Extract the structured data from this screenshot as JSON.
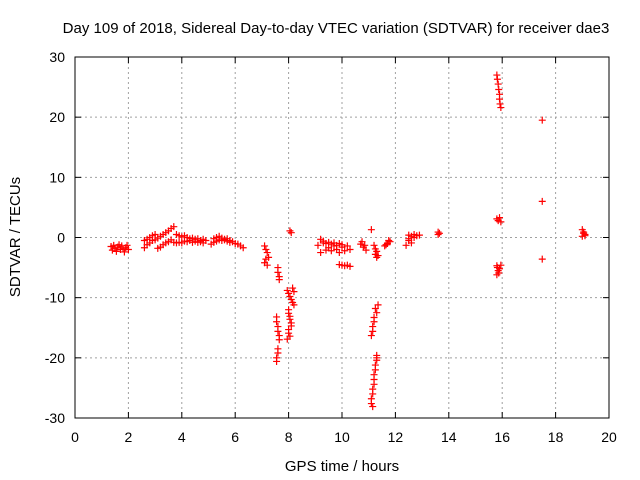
{
  "chart_data": {
    "type": "scatter",
    "title": "Day 109 of 2018, Sidereal Day-to-day VTEC variation (SDTVAR) for receiver dae3",
    "xlabel": "GPS time / hours",
    "ylabel": "SDTVAR / TECUs",
    "xlim": [
      0,
      20
    ],
    "ylim": [
      -30,
      30
    ],
    "xticks": [
      0,
      2,
      4,
      6,
      8,
      10,
      12,
      14,
      16,
      18,
      20
    ],
    "yticks": [
      -30,
      -20,
      -10,
      0,
      10,
      20,
      30
    ],
    "xtick_labels": [
      "0",
      "2",
      "4",
      "6",
      "8",
      "10",
      "12",
      "14",
      "16",
      "18",
      "20"
    ],
    "ytick_labels": [
      "-30",
      "-20",
      "-10",
      "0",
      "10",
      "20",
      "30"
    ],
    "grid": true,
    "marker": "+",
    "color": "#ff0000",
    "series": [
      {
        "name": "SDTVAR",
        "points": [
          [
            1.35,
            -1.5
          ],
          [
            1.4,
            -2.1
          ],
          [
            1.45,
            -1.3
          ],
          [
            1.5,
            -1.8
          ],
          [
            1.55,
            -2.3
          ],
          [
            1.6,
            -1.6
          ],
          [
            1.65,
            -1.2
          ],
          [
            1.7,
            -2.0
          ],
          [
            1.75,
            -1.4
          ],
          [
            1.8,
            -1.9
          ],
          [
            1.85,
            -2.4
          ],
          [
            1.9,
            -1.7
          ],
          [
            1.95,
            -1.3
          ],
          [
            2.0,
            -2.0
          ],
          [
            2.6,
            -1.7
          ],
          [
            2.7,
            -1.2
          ],
          [
            2.8,
            -0.9
          ],
          [
            2.9,
            -0.5
          ],
          [
            3.0,
            -0.4
          ],
          [
            3.1,
            -0.1
          ],
          [
            3.2,
            0.2
          ],
          [
            3.3,
            0.5
          ],
          [
            3.4,
            0.8
          ],
          [
            3.5,
            1.1
          ],
          [
            3.6,
            1.5
          ],
          [
            3.7,
            1.8
          ],
          [
            2.6,
            -0.5
          ],
          [
            2.7,
            -0.3
          ],
          [
            2.8,
            0.0
          ],
          [
            2.9,
            0.3
          ],
          [
            3.0,
            0.5
          ],
          [
            3.1,
            -1.8
          ],
          [
            3.2,
            -1.6
          ],
          [
            3.3,
            -1.2
          ],
          [
            3.4,
            -0.9
          ],
          [
            3.5,
            -0.7
          ],
          [
            3.6,
            -0.4
          ],
          [
            3.7,
            -0.8
          ],
          [
            3.8,
            -0.9
          ],
          [
            3.9,
            -0.8
          ],
          [
            4.0,
            -0.9
          ],
          [
            4.1,
            -0.6
          ],
          [
            4.2,
            -0.7
          ],
          [
            4.3,
            -0.5
          ],
          [
            4.4,
            -0.8
          ],
          [
            4.5,
            -0.6
          ],
          [
            4.6,
            -0.8
          ],
          [
            4.7,
            -0.7
          ],
          [
            4.8,
            -0.9
          ],
          [
            3.8,
            0.5
          ],
          [
            3.9,
            0.3
          ],
          [
            4.0,
            0.1
          ],
          [
            4.1,
            0.3
          ],
          [
            4.2,
            0.0
          ],
          [
            4.3,
            -0.2
          ],
          [
            4.4,
            -0.1
          ],
          [
            4.5,
            -0.3
          ],
          [
            4.6,
            -0.2
          ],
          [
            4.7,
            -0.5
          ],
          [
            4.8,
            -0.3
          ],
          [
            4.9,
            -0.5
          ],
          [
            5.1,
            -1.1
          ],
          [
            5.2,
            -0.8
          ],
          [
            5.3,
            -0.6
          ],
          [
            5.4,
            -0.4
          ],
          [
            5.5,
            -0.5
          ],
          [
            5.6,
            -0.3
          ],
          [
            5.7,
            -0.6
          ],
          [
            5.8,
            -0.8
          ],
          [
            5.9,
            -0.7
          ],
          [
            6.0,
            -1.0
          ],
          [
            6.1,
            -1.1
          ],
          [
            6.2,
            -1.4
          ],
          [
            6.3,
            -1.7
          ],
          [
            5.2,
            -0.2
          ],
          [
            5.3,
            0.0
          ],
          [
            5.4,
            0.2
          ],
          [
            5.5,
            -0.1
          ],
          [
            5.6,
            -0.4
          ],
          [
            5.7,
            -0.2
          ],
          [
            5.8,
            -0.5
          ],
          [
            7.1,
            -1.4
          ],
          [
            7.15,
            -2.0
          ],
          [
            7.2,
            -2.5
          ],
          [
            7.1,
            -4.2
          ],
          [
            7.15,
            -3.6
          ],
          [
            7.2,
            -4.6
          ],
          [
            7.25,
            -3.3
          ],
          [
            7.6,
            -5.0
          ],
          [
            7.6,
            -5.8
          ],
          [
            7.65,
            -6.5
          ],
          [
            7.65,
            -7.0
          ],
          [
            7.55,
            -13.2
          ],
          [
            7.55,
            -14.0
          ],
          [
            7.6,
            -14.8
          ],
          [
            7.6,
            -15.6
          ],
          [
            7.65,
            -16.3
          ],
          [
            7.65,
            -17.0
          ],
          [
            7.6,
            -18.5
          ],
          [
            7.6,
            -19.2
          ],
          [
            7.55,
            -20.0
          ],
          [
            7.55,
            -20.6
          ],
          [
            7.95,
            -8.8
          ],
          [
            8.0,
            -9.3
          ],
          [
            8.05,
            -9.8
          ],
          [
            8.1,
            -10.3
          ],
          [
            8.15,
            -10.8
          ],
          [
            8.2,
            -11.2
          ],
          [
            8.0,
            -12.0
          ],
          [
            8.0,
            -12.6
          ],
          [
            8.05,
            -13.1
          ],
          [
            8.05,
            -13.6
          ],
          [
            8.1,
            -14.2
          ],
          [
            8.1,
            -14.7
          ],
          [
            8.0,
            -15.3
          ],
          [
            8.0,
            -15.9
          ],
          [
            8.05,
            -16.4
          ],
          [
            7.95,
            -16.9
          ],
          [
            8.15,
            -8.4
          ],
          [
            8.2,
            -9.0
          ],
          [
            8.05,
            1.1
          ],
          [
            8.1,
            0.8
          ],
          [
            9.1,
            -1.3
          ],
          [
            9.2,
            -2.5
          ],
          [
            9.3,
            -0.9
          ],
          [
            9.4,
            -2.1
          ],
          [
            9.5,
            -1.7
          ],
          [
            9.6,
            -2.2
          ],
          [
            9.7,
            -1.4
          ],
          [
            9.8,
            -2.0
          ],
          [
            9.9,
            -2.5
          ],
          [
            10.0,
            -1.6
          ],
          [
            10.1,
            -2.2
          ],
          [
            10.2,
            -1.4
          ],
          [
            10.3,
            -2.0
          ],
          [
            9.2,
            -0.3
          ],
          [
            9.3,
            -0.6
          ],
          [
            9.4,
            -1.0
          ],
          [
            9.5,
            -0.8
          ],
          [
            9.6,
            -1.1
          ],
          [
            9.7,
            -0.9
          ],
          [
            9.8,
            -1.3
          ],
          [
            9.9,
            -1.0
          ],
          [
            10.0,
            -1.2
          ],
          [
            9.9,
            -4.5
          ],
          [
            10.0,
            -4.6
          ],
          [
            10.1,
            -4.7
          ],
          [
            10.2,
            -4.6
          ],
          [
            10.3,
            -4.8
          ],
          [
            10.7,
            -1.1
          ],
          [
            10.8,
            -1.6
          ],
          [
            10.9,
            -2.1
          ],
          [
            10.75,
            -0.7
          ],
          [
            10.85,
            -1.3
          ],
          [
            11.2,
            -1.3
          ],
          [
            11.25,
            -1.9
          ],
          [
            11.3,
            -2.3
          ],
          [
            11.25,
            -2.8
          ],
          [
            11.3,
            -3.3
          ],
          [
            11.35,
            -3.0
          ],
          [
            11.1,
            1.3
          ],
          [
            11.25,
            -11.8
          ],
          [
            11.3,
            -12.5
          ],
          [
            11.35,
            -11.2
          ],
          [
            11.2,
            -13.3
          ],
          [
            11.2,
            -14.0
          ],
          [
            11.15,
            -14.8
          ],
          [
            11.15,
            -15.6
          ],
          [
            11.1,
            -16.3
          ],
          [
            11.3,
            -19.6
          ],
          [
            11.3,
            -20.4
          ],
          [
            11.25,
            -21.2
          ],
          [
            11.25,
            -22.0
          ],
          [
            11.2,
            -22.8
          ],
          [
            11.2,
            -23.6
          ],
          [
            11.2,
            -24.4
          ],
          [
            11.15,
            -25.2
          ],
          [
            11.15,
            -26.0
          ],
          [
            11.1,
            -26.8
          ],
          [
            11.1,
            -27.6
          ],
          [
            11.15,
            -28.1
          ],
          [
            11.3,
            -20.0
          ],
          [
            11.6,
            -1.4
          ],
          [
            11.7,
            -1.0
          ],
          [
            11.8,
            -0.7
          ],
          [
            11.65,
            -1.2
          ],
          [
            11.75,
            -0.5
          ],
          [
            12.5,
            0.4
          ],
          [
            12.6,
            0.2
          ],
          [
            12.7,
            0.0
          ],
          [
            12.8,
            0.3
          ],
          [
            12.9,
            0.4
          ],
          [
            12.5,
            -0.5
          ],
          [
            12.6,
            -0.9
          ],
          [
            12.4,
            -1.3
          ],
          [
            12.5,
            -0.2
          ],
          [
            12.7,
            0.5
          ],
          [
            13.6,
            0.9
          ],
          [
            13.6,
            0.5
          ],
          [
            13.65,
            0.7
          ],
          [
            15.8,
            27.0
          ],
          [
            15.82,
            26.3
          ],
          [
            15.85,
            25.5
          ],
          [
            15.87,
            24.6
          ],
          [
            15.9,
            23.8
          ],
          [
            15.9,
            23.0
          ],
          [
            15.92,
            22.2
          ],
          [
            15.95,
            21.6
          ],
          [
            15.8,
            3.1
          ],
          [
            15.85,
            2.8
          ],
          [
            15.9,
            3.3
          ],
          [
            15.95,
            2.6
          ],
          [
            15.8,
            -4.7
          ],
          [
            15.82,
            -5.0
          ],
          [
            15.85,
            -5.5
          ],
          [
            15.87,
            -5.9
          ],
          [
            15.9,
            -5.2
          ],
          [
            15.95,
            -4.6
          ],
          [
            15.8,
            -6.2
          ],
          [
            17.5,
            19.5
          ],
          [
            17.5,
            6.0
          ],
          [
            17.5,
            -3.6
          ],
          [
            19.0,
            1.3
          ],
          [
            19.05,
            0.9
          ],
          [
            19.1,
            0.5
          ],
          [
            19.0,
            0.2
          ],
          [
            19.05,
            0.7
          ],
          [
            19.1,
            0.3
          ]
        ]
      }
    ]
  }
}
